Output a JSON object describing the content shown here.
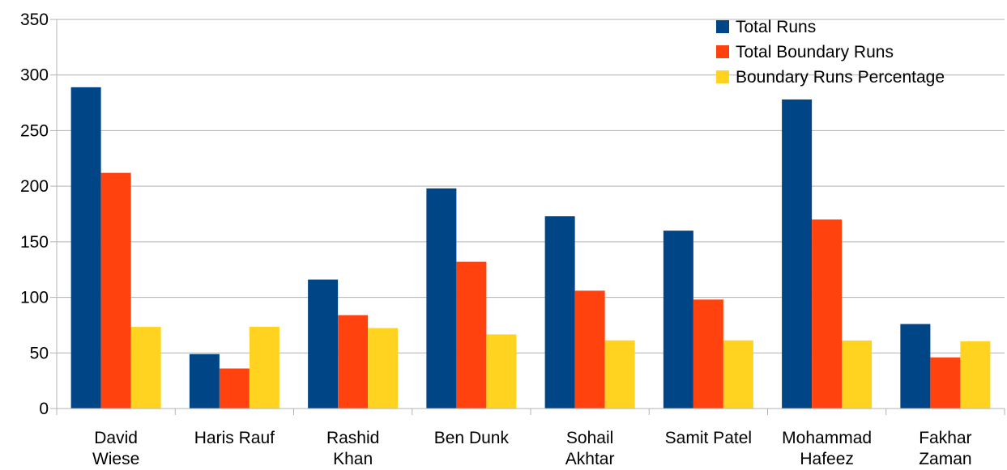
{
  "chart_data": {
    "type": "bar",
    "title": "",
    "xlabel": "",
    "ylabel": "",
    "ylim": [
      0,
      350
    ],
    "yticks": [
      0,
      50,
      100,
      150,
      200,
      250,
      300,
      350
    ],
    "grid": true,
    "legend_position": "top-right",
    "categories": [
      [
        "David",
        "Wiese"
      ],
      [
        "Haris Rauf"
      ],
      [
        "Rashid",
        "Khan"
      ],
      [
        "Ben Dunk"
      ],
      [
        "Sohail",
        "Akhtar"
      ],
      [
        "Samit Patel"
      ],
      [
        "Mohammad",
        "Hafeez"
      ],
      [
        "Fakhar",
        "Zaman"
      ]
    ],
    "series": [
      {
        "name": "Total Runs",
        "color": "#004586",
        "values": [
          289,
          49,
          116,
          198,
          173,
          160,
          278,
          76
        ]
      },
      {
        "name": "Total Boundary Runs",
        "color": "#ff420e",
        "values": [
          212,
          36,
          84,
          132,
          106,
          98,
          170,
          46
        ]
      },
      {
        "name": "Boundary Runs Percentage",
        "color": "#ffd320",
        "values": [
          73.4,
          73.5,
          72.4,
          66.7,
          61.3,
          61.3,
          61.2,
          60.5
        ]
      }
    ]
  }
}
